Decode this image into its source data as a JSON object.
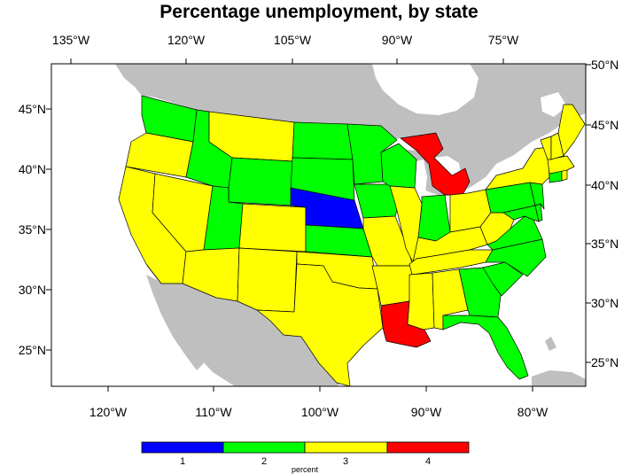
{
  "title": "Percentage unemployment, by state",
  "colors": {
    "level_1": "#0000ff",
    "level_2": "#00ff00",
    "level_3": "#ffff00",
    "level_4": "#ff0000",
    "land": "#bfbfbf",
    "water": "#ffffff"
  },
  "axes": {
    "top_lon_labels": [
      "135°W",
      "120°W",
      "105°W",
      "90°W",
      "75°W"
    ],
    "bottom_lon_labels": [
      "120°W",
      "110°W",
      "100°W",
      "90°W",
      "80°W"
    ],
    "left_lat_labels": [
      "45°N",
      "40°N",
      "35°N",
      "30°N",
      "25°N"
    ],
    "right_lat_labels": [
      "50°N",
      "45°N",
      "40°N",
      "35°N",
      "30°N",
      "25°N"
    ]
  },
  "colorbar": {
    "labels": [
      "1",
      "2",
      "3",
      "4"
    ],
    "title": "percent"
  },
  "chart_data": {
    "type": "choropleth",
    "title": "Percentage unemployment, by state",
    "legend": "bottom",
    "levels": [
      1,
      2,
      3,
      4
    ],
    "states": {
      "WA": 2,
      "OR": 3,
      "CA": 3,
      "NV": 3,
      "ID": 2,
      "MT": 3,
      "WY": 2,
      "UT": 2,
      "AZ": 3,
      "CO": 3,
      "NM": 3,
      "ND": 2,
      "SD": 2,
      "NE": 1,
      "KS": 2,
      "OK": 3,
      "TX": 3,
      "MN": 2,
      "IA": 2,
      "MO": 3,
      "AR": 3,
      "LA": 4,
      "WI": 2,
      "IL": 3,
      "MI": 4,
      "IN": 2,
      "OH": 3,
      "KY": 3,
      "TN": 3,
      "MS": 3,
      "AL": 3,
      "GA": 2,
      "FL": 2,
      "SC": 2,
      "NC": 2,
      "VA": 2,
      "WV": 3,
      "PA": 2,
      "NY": 3,
      "MD": 2,
      "DE": 2,
      "NJ": 2,
      "CT": 2,
      "RI": 3,
      "MA": 3,
      "VT": 3,
      "NH": 3,
      "ME": 3
    }
  }
}
